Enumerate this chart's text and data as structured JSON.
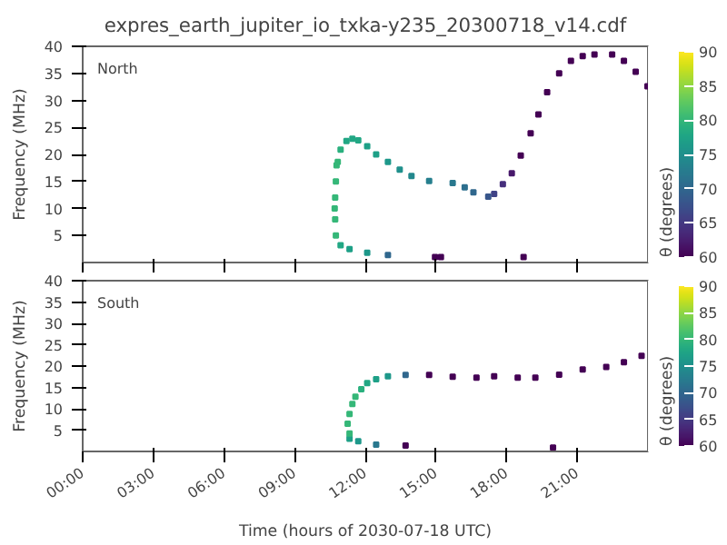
{
  "chart_data": [
    {
      "type": "scatter",
      "title": "expres_earth_jupiter_io_txka-y235_20300718_v14.cdf",
      "annotations": [
        "North"
      ],
      "ylabel": "Frequency (MHz)",
      "clabel": "θ (degrees)",
      "clim": [
        60,
        90
      ],
      "cticks": [
        60,
        65,
        70,
        75,
        80,
        85,
        90
      ],
      "marker": "square",
      "tick_labels": "y",
      "xlim": [
        0,
        24
      ],
      "xticks": [
        {
          "value": 0,
          "label": null
        },
        {
          "value": 3,
          "label": null
        },
        {
          "value": 6,
          "label": null
        },
        {
          "value": 9,
          "label": null
        },
        {
          "value": 12,
          "label": null
        },
        {
          "value": 15,
          "label": null
        },
        {
          "value": 18,
          "label": null
        },
        {
          "value": 21,
          "label": null
        }
      ],
      "ylim": [
        0,
        40
      ],
      "yticks": [
        5,
        10,
        15,
        20,
        25,
        30,
        35,
        40
      ],
      "x": [
        15.21,
        14.96,
        22.48,
        22.98,
        21.73,
        21.23,
        20.73,
        20.23,
        19.72,
        19.35,
        19.02,
        18.72,
        18.6,
        18.22,
        17.84,
        17.47,
        17.22,
        16.59,
        16.22,
        15.71,
        14.71,
        13.96,
        13.46,
        12.96,
        12.46,
        12.08,
        11.7,
        11.45,
        11.2,
        10.95,
        10.83,
        10.78,
        10.75,
        10.72,
        10.7,
        10.72,
        10.75,
        10.95,
        11.33,
        12.08,
        12.96,
        23.48,
        23.98
      ],
      "values": [
        1.0,
        1.0,
        38.5,
        37.3,
        38.5,
        38.2,
        37.3,
        35,
        31.5,
        27.4,
        23.9,
        1.0,
        19.8,
        16.5,
        14.5,
        12.7,
        12.2,
        13,
        13.9,
        14.7,
        15.1,
        16,
        17.2,
        18.6,
        20,
        21.5,
        22.6,
        22.9,
        22.5,
        20.9,
        18.6,
        18,
        15,
        12,
        10,
        8,
        5,
        3.2,
        2.5,
        1.8,
        1.4,
        35.3,
        32.6
      ],
      "cvalues": [
        60,
        60,
        60,
        60,
        60,
        60,
        60,
        60,
        60,
        60,
        60,
        60,
        60,
        62,
        64,
        66,
        68,
        70,
        71,
        72,
        73,
        74,
        75,
        76,
        77,
        77,
        78,
        78,
        78,
        79,
        80,
        80,
        80,
        80,
        80,
        80,
        80,
        78,
        77,
        76,
        70,
        60,
        60
      ]
    },
    {
      "type": "scatter",
      "annotations": [
        "South"
      ],
      "xlabel": "Time (hours of 2030-07-18 UTC)",
      "ylabel": "Frequency (MHz)",
      "clabel": "θ (degrees)",
      "clim": [
        60,
        90
      ],
      "cticks": [
        60,
        65,
        70,
        75,
        80,
        85,
        90
      ],
      "marker": "square",
      "xlim": [
        0,
        24
      ],
      "xticks": [
        {
          "value": 0,
          "label": "00:00"
        },
        {
          "value": 3,
          "label": "03:00"
        },
        {
          "value": 6,
          "label": "06:00"
        },
        {
          "value": 9,
          "label": "09:00"
        },
        {
          "value": 12,
          "label": "12:00"
        },
        {
          "value": 15,
          "label": "15:00"
        },
        {
          "value": 18,
          "label": "18:00"
        },
        {
          "value": 21,
          "label": "21:00"
        }
      ],
      "ylim": [
        0,
        40
      ],
      "yticks": [
        5,
        10,
        15,
        20,
        25,
        30,
        35,
        40
      ],
      "x": [
        11.33,
        11.7,
        12.46,
        13.71,
        19.97,
        11.33,
        11.25,
        11.33,
        11.45,
        11.58,
        11.83,
        12.08,
        12.46,
        12.96,
        13.71,
        14.71,
        15.71,
        16.72,
        17.47,
        18.47,
        19.22,
        20.23,
        21.23,
        22.23,
        22.98,
        23.73
      ],
      "values": [
        3,
        2.4,
        1.6,
        1.4,
        0.9,
        4.2,
        6.5,
        8.8,
        11.1,
        12.8,
        14.6,
        16,
        16.9,
        17.6,
        17.9,
        17.9,
        17.5,
        17.3,
        17.6,
        17.3,
        17.3,
        18,
        19.2,
        19.8,
        20.9,
        22.4
      ],
      "cvalues": [
        77,
        76,
        72,
        60,
        60,
        80,
        80,
        80,
        80,
        80,
        79,
        78,
        77,
        76,
        70,
        60,
        60,
        60,
        60,
        60,
        60,
        60,
        60,
        60,
        60,
        60
      ]
    }
  ]
}
